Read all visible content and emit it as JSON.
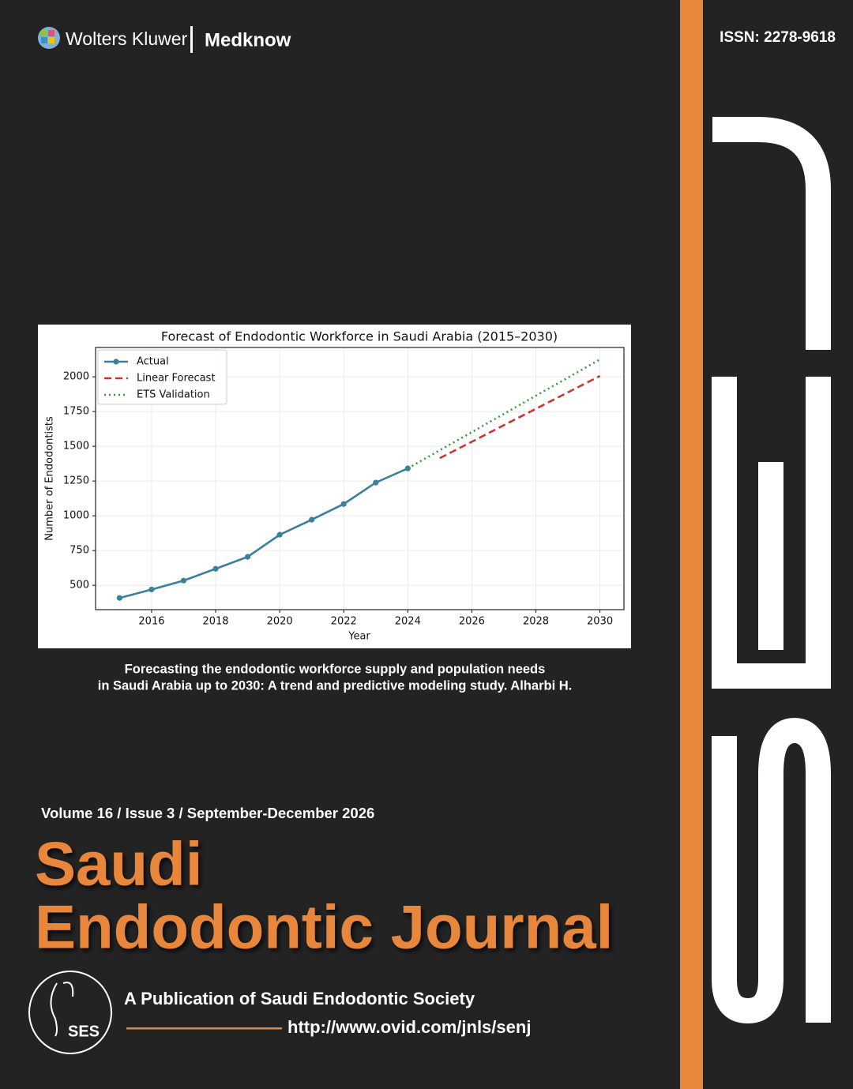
{
  "header": {
    "publisher": "Wolters Kluwer",
    "imprint": "Medknow",
    "issn": "ISSN: 2278-9618"
  },
  "chart_data": {
    "type": "line",
    "title": "Forecast of Endodontic Workforce in Saudi Arabia (2015–2030)",
    "xlabel": "Year",
    "ylabel": "Number of Endodontists",
    "x": [
      2015,
      2016,
      2017,
      2018,
      2019,
      2020,
      2021,
      2022,
      2023,
      2024,
      2025,
      2026,
      2027,
      2028,
      2029,
      2030
    ],
    "series": [
      {
        "name": "Actual",
        "color": "#3b7f9c",
        "style": "solid",
        "markers": true,
        "values": [
          409,
          470,
          534,
          619,
          705,
          864,
          972,
          1085,
          1239,
          1341,
          null,
          null,
          null,
          null,
          null,
          null
        ]
      },
      {
        "name": "Linear Forecast",
        "color": "#c9372c",
        "style": "dashed",
        "markers": false,
        "values": [
          null,
          null,
          null,
          null,
          null,
          null,
          null,
          null,
          null,
          null,
          1415,
          1533,
          1652,
          1770,
          1888,
          2006
        ]
      },
      {
        "name": "ETS Validation",
        "color": "#3a9a3a",
        "style": "dotted",
        "markers": false,
        "values": [
          null,
          null,
          null,
          null,
          null,
          null,
          null,
          null,
          null,
          1341,
          1472,
          1602,
          1733,
          1864,
          1994,
          2125
        ]
      }
    ],
    "xlim": [
      2014.25,
      2030.75
    ],
    "ylim": [
      325,
      2211
    ],
    "xticks": [
      2016,
      2018,
      2020,
      2022,
      2024,
      2026,
      2028,
      2030
    ],
    "yticks": [
      500,
      750,
      1000,
      1250,
      1500,
      1750,
      2000
    ],
    "grid": true,
    "legend": "upper-left"
  },
  "caption": [
    "Forecasting the endodontic workforce supply and population needs",
    "in Saudi Arabia up to 2030: A trend and predictive modeling study. Alharbi H."
  ],
  "issue": "Volume 16 / Issue 3 / September-December 2026",
  "journal_title": [
    "Saudi",
    "Endodontic Journal"
  ],
  "society": {
    "logo": "SES",
    "name": "A Publication of Saudi Endodontic Society",
    "url": "http://www.ovid.com/jnls/senj"
  }
}
